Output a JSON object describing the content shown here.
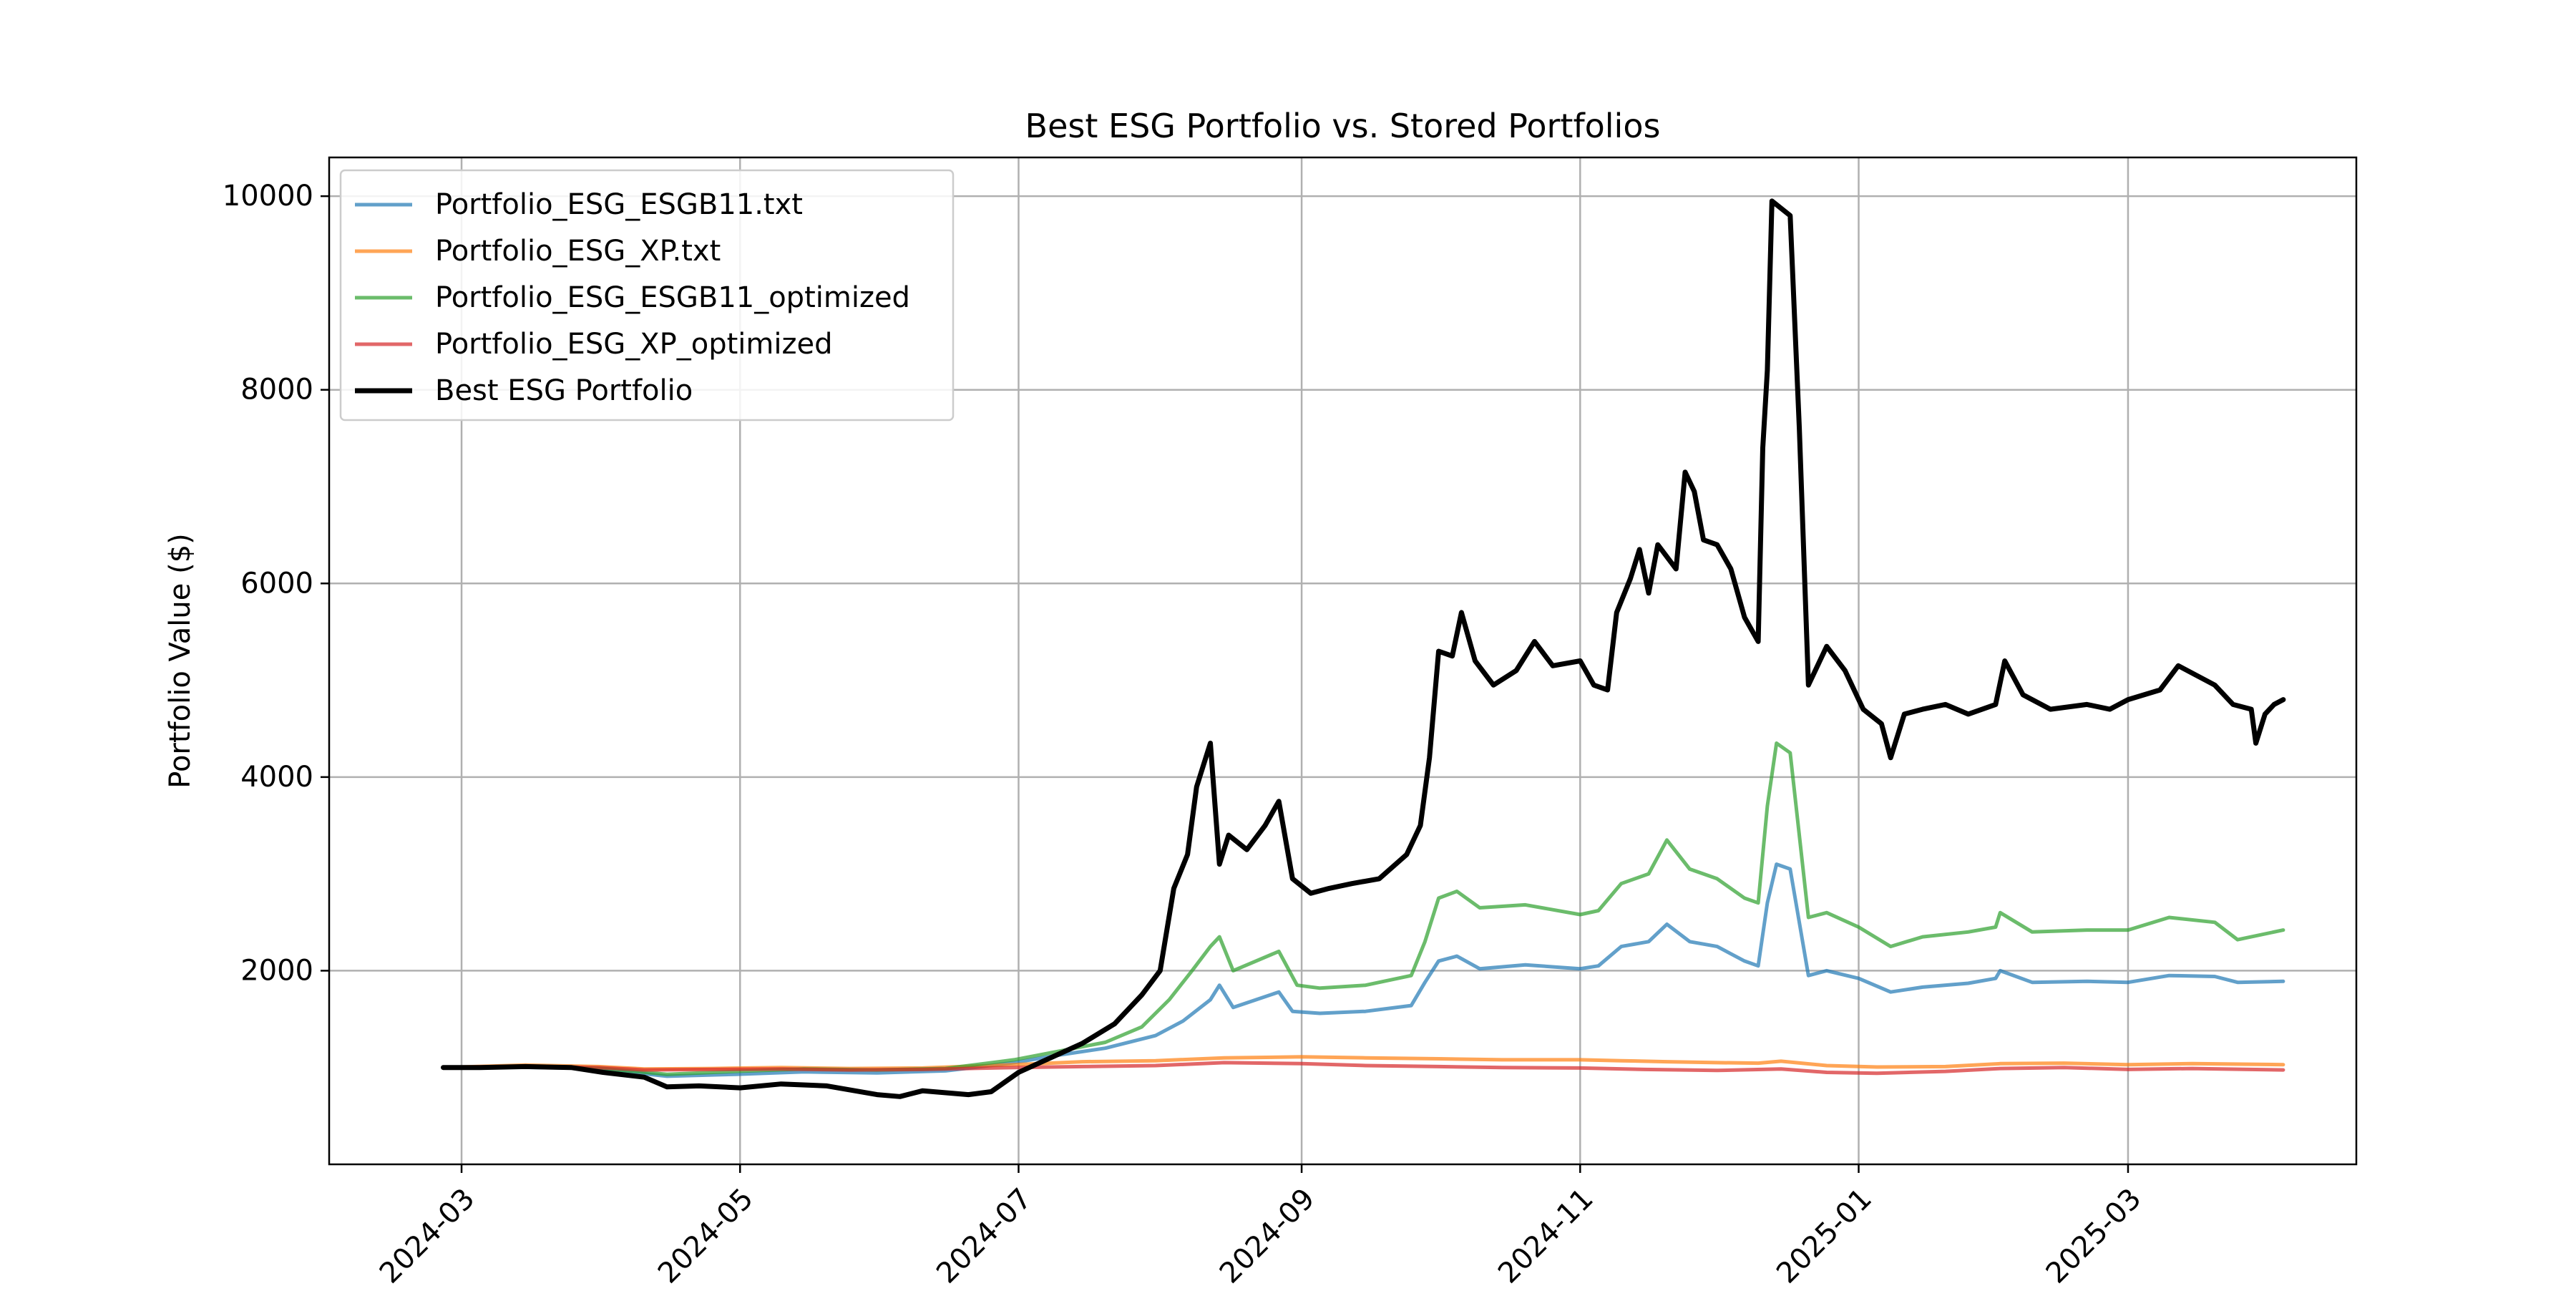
{
  "chart_data": {
    "type": "line",
    "title": "Best ESG Portfolio vs. Stored Portfolios",
    "xlabel": "",
    "ylabel": "Portfolio Value ($)",
    "xlim": [
      "2024-02-01",
      "2025-04-20"
    ],
    "ylim": [
      0,
      10400
    ],
    "grid": true,
    "legend_position": "top-left",
    "x_ticks": [
      "2024-03",
      "2024-05",
      "2024-07",
      "2024-09",
      "2024-11",
      "2025-01",
      "2025-03"
    ],
    "y_ticks": [
      2000,
      4000,
      6000,
      8000,
      10000
    ],
    "y_tick_labels": [
      "2000",
      "4000",
      "6000",
      "8000",
      "10000"
    ],
    "series": [
      {
        "name": "Portfolio_ESG_ESGB11.txt",
        "color": "#1f77b4",
        "alpha": 0.7,
        "points": [
          [
            "2024-02-26",
            1000
          ],
          [
            "2024-03-10",
            1005
          ],
          [
            "2024-03-25",
            995
          ],
          [
            "2024-04-05",
            960
          ],
          [
            "2024-04-15",
            910
          ],
          [
            "2024-04-30",
            930
          ],
          [
            "2024-05-15",
            955
          ],
          [
            "2024-05-31",
            945
          ],
          [
            "2024-06-15",
            965
          ],
          [
            "2024-06-30",
            1050
          ],
          [
            "2024-07-10",
            1130
          ],
          [
            "2024-07-20",
            1200
          ],
          [
            "2024-07-31",
            1330
          ],
          [
            "2024-08-06",
            1480
          ],
          [
            "2024-08-12",
            1700
          ],
          [
            "2024-08-14",
            1850
          ],
          [
            "2024-08-17",
            1620
          ],
          [
            "2024-08-22",
            1700
          ],
          [
            "2024-08-27",
            1780
          ],
          [
            "2024-08-30",
            1580
          ],
          [
            "2024-09-05",
            1560
          ],
          [
            "2024-09-15",
            1580
          ],
          [
            "2024-09-25",
            1640
          ],
          [
            "2024-09-28",
            1880
          ],
          [
            "2024-10-01",
            2100
          ],
          [
            "2024-10-05",
            2150
          ],
          [
            "2024-10-10",
            2020
          ],
          [
            "2024-10-20",
            2060
          ],
          [
            "2024-11-01",
            2020
          ],
          [
            "2024-11-05",
            2050
          ],
          [
            "2024-11-10",
            2250
          ],
          [
            "2024-11-16",
            2300
          ],
          [
            "2024-11-20",
            2480
          ],
          [
            "2024-11-25",
            2300
          ],
          [
            "2024-12-01",
            2250
          ],
          [
            "2024-12-07",
            2100
          ],
          [
            "2024-12-10",
            2050
          ],
          [
            "2024-12-12",
            2700
          ],
          [
            "2024-12-14",
            3100
          ],
          [
            "2024-12-17",
            3050
          ],
          [
            "2024-12-21",
            1950
          ],
          [
            "2024-12-25",
            2000
          ],
          [
            "2025-01-01",
            1920
          ],
          [
            "2025-01-08",
            1780
          ],
          [
            "2025-01-15",
            1830
          ],
          [
            "2025-01-25",
            1870
          ],
          [
            "2025-01-31",
            1920
          ],
          [
            "2025-02-01",
            2000
          ],
          [
            "2025-02-08",
            1880
          ],
          [
            "2025-02-20",
            1890
          ],
          [
            "2025-03-01",
            1880
          ],
          [
            "2025-03-10",
            1950
          ],
          [
            "2025-03-20",
            1940
          ],
          [
            "2025-03-25",
            1880
          ],
          [
            "2025-04-04",
            1890
          ]
        ]
      },
      {
        "name": "Portfolio_ESG_XP.txt",
        "color": "#ff7f0e",
        "alpha": 0.7,
        "points": [
          [
            "2024-02-26",
            1000
          ],
          [
            "2024-03-15",
            1025
          ],
          [
            "2024-03-31",
            1010
          ],
          [
            "2024-04-10",
            985
          ],
          [
            "2024-04-25",
            990
          ],
          [
            "2024-05-10",
            1000
          ],
          [
            "2024-05-25",
            990
          ],
          [
            "2024-06-10",
            995
          ],
          [
            "2024-06-30",
            1030
          ],
          [
            "2024-07-15",
            1060
          ],
          [
            "2024-07-31",
            1070
          ],
          [
            "2024-08-15",
            1100
          ],
          [
            "2024-09-01",
            1110
          ],
          [
            "2024-09-15",
            1100
          ],
          [
            "2024-10-01",
            1090
          ],
          [
            "2024-10-15",
            1080
          ],
          [
            "2024-11-01",
            1080
          ],
          [
            "2024-11-10",
            1070
          ],
          [
            "2024-11-20",
            1060
          ],
          [
            "2024-12-01",
            1050
          ],
          [
            "2024-12-10",
            1045
          ],
          [
            "2024-12-15",
            1065
          ],
          [
            "2024-12-25",
            1020
          ],
          [
            "2025-01-05",
            1005
          ],
          [
            "2025-01-20",
            1010
          ],
          [
            "2025-02-01",
            1040
          ],
          [
            "2025-02-15",
            1045
          ],
          [
            "2025-03-01",
            1030
          ],
          [
            "2025-03-15",
            1040
          ],
          [
            "2025-04-04",
            1030
          ]
        ]
      },
      {
        "name": "Portfolio_ESG_ESGB11_optimized",
        "color": "#2ca02c",
        "alpha": 0.7,
        "points": [
          [
            "2024-02-26",
            1000
          ],
          [
            "2024-03-15",
            1010
          ],
          [
            "2024-04-01",
            990
          ],
          [
            "2024-04-15",
            930
          ],
          [
            "2024-04-30",
            960
          ],
          [
            "2024-05-15",
            985
          ],
          [
            "2024-05-31",
            975
          ],
          [
            "2024-06-15",
            990
          ],
          [
            "2024-06-30",
            1080
          ],
          [
            "2024-07-10",
            1170
          ],
          [
            "2024-07-20",
            1260
          ],
          [
            "2024-07-28",
            1420
          ],
          [
            "2024-08-03",
            1700
          ],
          [
            "2024-08-08",
            2000
          ],
          [
            "2024-08-12",
            2250
          ],
          [
            "2024-08-14",
            2350
          ],
          [
            "2024-08-17",
            2000
          ],
          [
            "2024-08-22",
            2100
          ],
          [
            "2024-08-27",
            2200
          ],
          [
            "2024-08-31",
            1850
          ],
          [
            "2024-09-05",
            1820
          ],
          [
            "2024-09-15",
            1850
          ],
          [
            "2024-09-25",
            1950
          ],
          [
            "2024-09-28",
            2300
          ],
          [
            "2024-10-01",
            2750
          ],
          [
            "2024-10-05",
            2820
          ],
          [
            "2024-10-10",
            2650
          ],
          [
            "2024-10-20",
            2680
          ],
          [
            "2024-11-01",
            2580
          ],
          [
            "2024-11-05",
            2620
          ],
          [
            "2024-11-10",
            2900
          ],
          [
            "2024-11-16",
            3000
          ],
          [
            "2024-11-20",
            3350
          ],
          [
            "2024-11-25",
            3050
          ],
          [
            "2024-12-01",
            2950
          ],
          [
            "2024-12-07",
            2750
          ],
          [
            "2024-12-10",
            2700
          ],
          [
            "2024-12-12",
            3700
          ],
          [
            "2024-12-14",
            4350
          ],
          [
            "2024-12-17",
            4250
          ],
          [
            "2024-12-21",
            2550
          ],
          [
            "2024-12-25",
            2600
          ],
          [
            "2025-01-01",
            2450
          ],
          [
            "2025-01-08",
            2250
          ],
          [
            "2025-01-15",
            2350
          ],
          [
            "2025-01-25",
            2400
          ],
          [
            "2025-01-31",
            2450
          ],
          [
            "2025-02-01",
            2600
          ],
          [
            "2025-02-08",
            2400
          ],
          [
            "2025-02-20",
            2420
          ],
          [
            "2025-03-01",
            2420
          ],
          [
            "2025-03-10",
            2550
          ],
          [
            "2025-03-20",
            2500
          ],
          [
            "2025-03-25",
            2320
          ],
          [
            "2025-04-04",
            2420
          ]
        ]
      },
      {
        "name": "Portfolio_ESG_XP_optimized",
        "color": "#d62728",
        "alpha": 0.7,
        "points": [
          [
            "2024-02-26",
            1000
          ],
          [
            "2024-03-15",
            1015
          ],
          [
            "2024-03-31",
            1000
          ],
          [
            "2024-04-10",
            975
          ],
          [
            "2024-04-25",
            980
          ],
          [
            "2024-05-10",
            985
          ],
          [
            "2024-05-25",
            975
          ],
          [
            "2024-06-10",
            980
          ],
          [
            "2024-06-30",
            1000
          ],
          [
            "2024-07-15",
            1010
          ],
          [
            "2024-07-31",
            1020
          ],
          [
            "2024-08-15",
            1050
          ],
          [
            "2024-09-01",
            1040
          ],
          [
            "2024-09-15",
            1020
          ],
          [
            "2024-10-01",
            1010
          ],
          [
            "2024-10-15",
            1000
          ],
          [
            "2024-11-01",
            995
          ],
          [
            "2024-11-15",
            980
          ],
          [
            "2024-12-01",
            970
          ],
          [
            "2024-12-15",
            985
          ],
          [
            "2024-12-25",
            950
          ],
          [
            "2025-01-05",
            940
          ],
          [
            "2025-01-20",
            960
          ],
          [
            "2025-02-01",
            990
          ],
          [
            "2025-02-15",
            1000
          ],
          [
            "2025-03-01",
            980
          ],
          [
            "2025-03-15",
            990
          ],
          [
            "2025-04-04",
            975
          ]
        ]
      },
      {
        "name": "Best ESG Portfolio",
        "color": "#000000",
        "alpha": 1.0,
        "points": [
          [
            "2024-02-26",
            1000
          ],
          [
            "2024-03-05",
            1000
          ],
          [
            "2024-03-15",
            1010
          ],
          [
            "2024-03-25",
            1000
          ],
          [
            "2024-04-01",
            950
          ],
          [
            "2024-04-10",
            900
          ],
          [
            "2024-04-15",
            800
          ],
          [
            "2024-04-22",
            810
          ],
          [
            "2024-05-01",
            790
          ],
          [
            "2024-05-10",
            830
          ],
          [
            "2024-05-20",
            810
          ],
          [
            "2024-05-31",
            720
          ],
          [
            "2024-06-05",
            700
          ],
          [
            "2024-06-10",
            760
          ],
          [
            "2024-06-20",
            720
          ],
          [
            "2024-06-25",
            750
          ],
          [
            "2024-07-01",
            950
          ],
          [
            "2024-07-08",
            1100
          ],
          [
            "2024-07-15",
            1250
          ],
          [
            "2024-07-22",
            1450
          ],
          [
            "2024-07-28",
            1750
          ],
          [
            "2024-08-01",
            2000
          ],
          [
            "2024-08-04",
            2850
          ],
          [
            "2024-08-07",
            3200
          ],
          [
            "2024-08-09",
            3900
          ],
          [
            "2024-08-11",
            4200
          ],
          [
            "2024-08-12",
            4350
          ],
          [
            "2024-08-14",
            3100
          ],
          [
            "2024-08-16",
            3400
          ],
          [
            "2024-08-20",
            3250
          ],
          [
            "2024-08-24",
            3500
          ],
          [
            "2024-08-27",
            3750
          ],
          [
            "2024-08-30",
            2950
          ],
          [
            "2024-09-03",
            2800
          ],
          [
            "2024-09-07",
            2850
          ],
          [
            "2024-09-12",
            2900
          ],
          [
            "2024-09-18",
            2950
          ],
          [
            "2024-09-24",
            3200
          ],
          [
            "2024-09-27",
            3500
          ],
          [
            "2024-09-29",
            4200
          ],
          [
            "2024-10-01",
            5300
          ],
          [
            "2024-10-04",
            5250
          ],
          [
            "2024-10-06",
            5700
          ],
          [
            "2024-10-09",
            5200
          ],
          [
            "2024-10-13",
            4950
          ],
          [
            "2024-10-18",
            5100
          ],
          [
            "2024-10-22",
            5400
          ],
          [
            "2024-10-26",
            5150
          ],
          [
            "2024-11-01",
            5200
          ],
          [
            "2024-11-04",
            4950
          ],
          [
            "2024-11-07",
            4900
          ],
          [
            "2024-11-09",
            5700
          ],
          [
            "2024-11-12",
            6050
          ],
          [
            "2024-11-14",
            6350
          ],
          [
            "2024-11-16",
            5900
          ],
          [
            "2024-11-18",
            6400
          ],
          [
            "2024-11-22",
            6150
          ],
          [
            "2024-11-24",
            7150
          ],
          [
            "2024-11-26",
            6950
          ],
          [
            "2024-11-28",
            6450
          ],
          [
            "2024-12-01",
            6400
          ],
          [
            "2024-12-04",
            6150
          ],
          [
            "2024-12-07",
            5650
          ],
          [
            "2024-12-10",
            5400
          ],
          [
            "2024-12-11",
            7400
          ],
          [
            "2024-12-12",
            8200
          ],
          [
            "2024-12-13",
            9950
          ],
          [
            "2024-12-17",
            9800
          ],
          [
            "2024-12-19",
            7600
          ],
          [
            "2024-12-21",
            4950
          ],
          [
            "2024-12-25",
            5350
          ],
          [
            "2024-12-29",
            5100
          ],
          [
            "2025-01-02",
            4700
          ],
          [
            "2025-01-06",
            4550
          ],
          [
            "2025-01-08",
            4200
          ],
          [
            "2025-01-11",
            4650
          ],
          [
            "2025-01-15",
            4700
          ],
          [
            "2025-01-20",
            4750
          ],
          [
            "2025-01-25",
            4650
          ],
          [
            "2025-01-31",
            4750
          ],
          [
            "2025-02-02",
            5200
          ],
          [
            "2025-02-06",
            4850
          ],
          [
            "2025-02-12",
            4700
          ],
          [
            "2025-02-20",
            4750
          ],
          [
            "2025-02-25",
            4700
          ],
          [
            "2025-03-01",
            4800
          ],
          [
            "2025-03-08",
            4900
          ],
          [
            "2025-03-12",
            5150
          ],
          [
            "2025-03-16",
            5050
          ],
          [
            "2025-03-20",
            4950
          ],
          [
            "2025-03-24",
            4750
          ],
          [
            "2025-03-28",
            4700
          ],
          [
            "2025-03-29",
            4350
          ],
          [
            "2025-03-31",
            4650
          ],
          [
            "2025-04-02",
            4750
          ],
          [
            "2025-04-04",
            4800
          ]
        ]
      }
    ]
  }
}
